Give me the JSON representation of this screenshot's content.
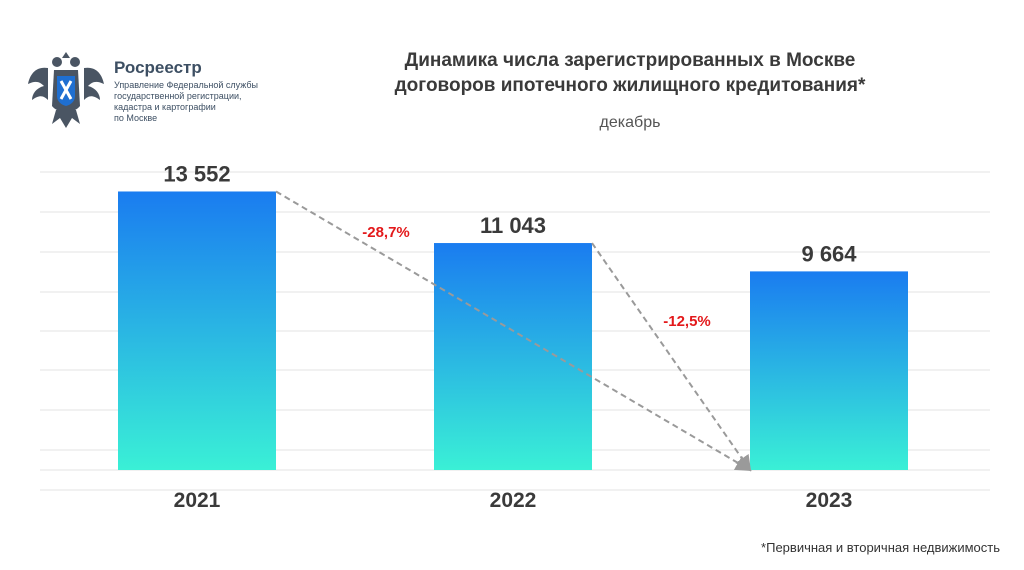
{
  "brand": {
    "name": "Росреестр",
    "subtitle_lines": [
      "Управление Федеральной службы",
      "государственной регистрации,",
      "кадастра и картографии",
      "по Москве"
    ],
    "emblem_icon": "double-headed-eagle-emblem",
    "emblem_color": "#4a5563",
    "shield_color": "#1f6fd1"
  },
  "title_lines": [
    "Динамика числа зарегистрированных в Москве",
    "договоров ипотечного жилищного кредитования*"
  ],
  "subtitle": "декабрь",
  "footnote": "*Первичная и вторичная недвижимость",
  "chart_data": {
    "type": "bar",
    "categories": [
      "2021",
      "2022",
      "2023"
    ],
    "values": [
      13552,
      11043,
      9664
    ],
    "value_labels": [
      "13 552",
      "11 043",
      "9 664"
    ],
    "changes": [
      {
        "from": "2021",
        "to": "2023",
        "label": "-28,7%"
      },
      {
        "from": "2022",
        "to": "2023",
        "label": "-12,5%"
      }
    ],
    "ylim": [
      0,
      14500
    ],
    "grid": true,
    "bar_gradient": [
      "#1a7cf0",
      "#3af0d6"
    ],
    "change_color": "#e3191b",
    "arrow_color": "#9a9a9a"
  }
}
